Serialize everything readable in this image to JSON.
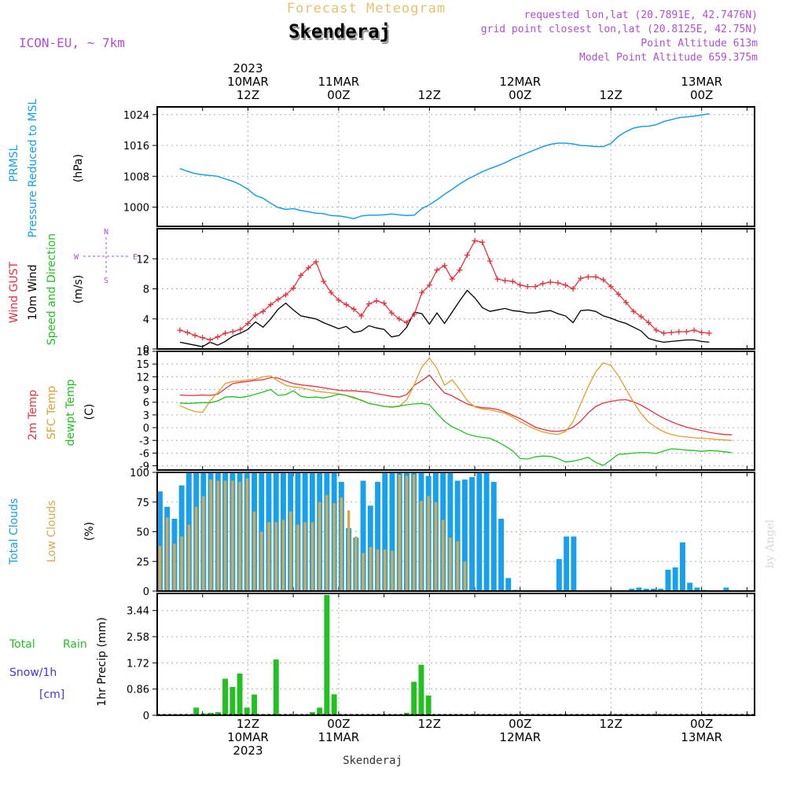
{
  "header": {
    "title": "Forecast Meteogram",
    "location": "Skenderaj",
    "model": "ICON-EU, ~ 7km",
    "requested": "requested lon,lat (20.7891E, 42.7476N)",
    "grid_point": "grid point closest lon,lat (20.8125E, 42.75N)",
    "point_altitude": "Point Altitude 613m",
    "model_altitude": "Model Point Altitude 659.375m",
    "footer_location": "Skenderaj",
    "watermark": "by Angel"
  },
  "colors": {
    "pressure": "#1a9ee8",
    "gust": "#e8323c",
    "wind": "#000000",
    "t2m": "#e8323c",
    "sfc": "#e0a030",
    "dewpt": "#22c022",
    "clouds_total": "#16a0ee",
    "clouds_low": "#d4aa50",
    "rain": "#22c022",
    "snow_label": "#3a3ae0",
    "purple": "#b14fd4",
    "title_orange": "#e8c070"
  },
  "chart_data": [
    {
      "type": "line",
      "panel": "pressure",
      "ylabels": [
        "PRMSL",
        "Pressure Reduced to MSL",
        "(hPa)"
      ],
      "ylim": [
        995,
        1026
      ],
      "yticks": [
        "1000",
        "1008",
        "1016",
        "1024"
      ],
      "x_hours_start": 3,
      "x_step_hours": 1,
      "values": [
        1010.0,
        1009.3,
        1008.7,
        1008.4,
        1008.2,
        1008.0,
        1007.3,
        1006.7,
        1005.8,
        1004.6,
        1003.0,
        1002.3,
        1001.0,
        999.9,
        999.4,
        999.6,
        999.1,
        998.8,
        998.4,
        998.3,
        997.8,
        997.7,
        997.4,
        997.0,
        997.7,
        997.9,
        997.9,
        998.0,
        998.2,
        998.0,
        997.8,
        997.9,
        999.6,
        1000.6,
        1001.9,
        1003.3,
        1004.6,
        1006.0,
        1007.2,
        1008.2,
        1009.2,
        1010.0,
        1010.7,
        1011.5,
        1012.5,
        1013.3,
        1014.1,
        1014.9,
        1015.7,
        1016.3,
        1016.6,
        1016.6,
        1016.4,
        1016.0,
        1015.9,
        1015.7,
        1015.7,
        1016.5,
        1018.4,
        1019.6,
        1020.5,
        1020.9,
        1021.0,
        1021.4,
        1022.2,
        1022.7,
        1023.2,
        1023.4,
        1023.6,
        1023.9,
        1024.2
      ]
    },
    {
      "type": "line",
      "panel": "wind",
      "ylabels": [
        "Wind GUST",
        "10m Wind",
        "Speed and Direction",
        "(m/s)"
      ],
      "compass": [
        "N",
        "W",
        "E",
        "S"
      ],
      "ylim": [
        0,
        16
      ],
      "yticks": [
        "0",
        "4",
        "8",
        "12"
      ],
      "x_hours_start": 3,
      "x_step_hours": 1,
      "series": [
        {
          "name": "Wind GUST",
          "values": [
            2.5,
            2.2,
            1.8,
            1.5,
            1.2,
            1.6,
            2.1,
            2.3,
            2.6,
            3.4,
            4.5,
            5.0,
            5.9,
            6.6,
            7.2,
            8.1,
            9.8,
            10.8,
            11.6,
            9.0,
            7.5,
            6.5,
            5.9,
            5.3,
            4.4,
            6.0,
            6.4,
            6.1,
            4.8,
            4.0,
            3.5,
            4.6,
            7.5,
            8.5,
            10.5,
            11.1,
            9.3,
            10.5,
            12.5,
            14.4,
            14.2,
            11.7,
            9.3,
            9.1,
            9.0,
            8.5,
            8.3,
            8.3,
            8.7,
            8.9,
            8.8,
            8.5,
            8.0,
            9.4,
            9.6,
            9.6,
            9.2,
            8.3,
            7.3,
            6.2,
            5.0,
            4.3,
            3.5,
            2.5,
            2.1,
            2.2,
            2.3,
            2.3,
            2.5,
            2.2,
            2.1
          ]
        },
        {
          "name": "10m Wind",
          "values": [
            0.9,
            0.7,
            0.5,
            0.3,
            0.9,
            0.5,
            1.0,
            1.7,
            2.1,
            2.6,
            3.6,
            2.9,
            4.0,
            5.3,
            6.1,
            5.2,
            4.4,
            4.2,
            4.0,
            3.5,
            3.1,
            2.7,
            3.0,
            2.2,
            2.4,
            3.1,
            2.8,
            2.6,
            1.6,
            1.8,
            2.9,
            4.9,
            4.7,
            3.3,
            4.8,
            3.4,
            4.9,
            6.4,
            7.8,
            6.8,
            5.5,
            5.0,
            5.2,
            5.4,
            5.1,
            5.0,
            4.8,
            4.8,
            5.0,
            5.1,
            4.7,
            4.4,
            3.5,
            5.1,
            5.2,
            5.0,
            4.4,
            4.1,
            3.7,
            3.4,
            2.9,
            2.4,
            1.4,
            1.1,
            0.9,
            1.0,
            1.1,
            1.2,
            1.2,
            1.0,
            0.9
          ]
        }
      ]
    },
    {
      "type": "line",
      "panel": "temperature",
      "ylabels": [
        "2m Temp",
        "SFC Temp",
        "dewpt Temp",
        "(C)"
      ],
      "ylim": [
        -10,
        18
      ],
      "yticks": [
        "-9",
        "-6",
        "-3",
        "0",
        "3",
        "6",
        "9",
        "12",
        "15",
        "18"
      ],
      "x_hours_start": 3,
      "x_step_hours": 1,
      "series": [
        {
          "name": "2m Temp",
          "values": [
            7.7,
            7.6,
            7.6,
            7.7,
            7.6,
            7.9,
            9.2,
            10.4,
            10.7,
            10.9,
            11.2,
            11.3,
            11.8,
            11.7,
            11.0,
            10.4,
            10.1,
            9.9,
            9.7,
            9.4,
            9.1,
            8.8,
            8.7,
            8.7,
            8.5,
            8.4,
            8.0,
            7.7,
            7.4,
            7.2,
            7.8,
            10.0,
            11.1,
            12.4,
            10.2,
            8.2,
            7.5,
            6.5,
            5.6,
            5.0,
            4.7,
            4.6,
            4.3,
            3.7,
            2.9,
            2.1,
            1.1,
            0.1,
            -0.4,
            -0.8,
            -0.9,
            -0.6,
            0.1,
            1.5,
            3.5,
            5.0,
            5.8,
            6.2,
            6.5,
            6.6,
            6.1,
            5.3,
            4.3,
            3.2,
            2.2,
            1.4,
            0.7,
            0.1,
            -0.3,
            -0.7,
            -1.1,
            -1.4,
            -1.6,
            -1.7
          ]
        },
        {
          "name": "SFC Temp",
          "values": [
            5.2,
            4.4,
            3.8,
            3.6,
            6.3,
            8.3,
            10.4,
            10.9,
            11.0,
            11.3,
            11.5,
            12.0,
            12.2,
            11.0,
            10.0,
            9.6,
            9.4,
            9.0,
            8.6,
            8.4,
            8.2,
            8.0,
            7.6,
            7.2,
            6.4,
            5.7,
            5.4,
            5.0,
            4.8,
            5.0,
            6.6,
            10.2,
            14.3,
            16.4,
            14.0,
            10.0,
            11.3,
            9.0,
            6.4,
            4.9,
            4.4,
            4.2,
            3.8,
            3.4,
            2.5,
            1.4,
            0.5,
            -0.4,
            -1.0,
            -1.4,
            -1.6,
            -0.9,
            1.4,
            5.6,
            9.7,
            13.2,
            15.3,
            14.7,
            12.2,
            9.1,
            6.0,
            3.3,
            1.3,
            0.0,
            -1.0,
            -1.6,
            -2.0,
            -2.2,
            -2.4,
            -2.5,
            -2.6,
            -2.8,
            -2.9,
            -3.0
          ]
        },
        {
          "name": "dewpt Temp",
          "values": [
            5.8,
            5.7,
            5.8,
            5.9,
            5.9,
            6.3,
            7.2,
            7.3,
            7.1,
            7.4,
            7.9,
            8.4,
            9.0,
            7.6,
            7.8,
            8.7,
            7.4,
            7.1,
            7.2,
            7.0,
            7.4,
            7.9,
            7.6,
            7.0,
            6.5,
            5.7,
            5.4,
            5.0,
            4.9,
            5.1,
            5.4,
            5.6,
            5.7,
            5.4,
            3.4,
            1.5,
            0.2,
            -0.6,
            -1.5,
            -2.0,
            -2.3,
            -2.5,
            -3.3,
            -4.3,
            -5.5,
            -7.3,
            -7.4,
            -6.9,
            -6.7,
            -6.8,
            -7.3,
            -8.1,
            -7.9,
            -7.5,
            -7.0,
            -8.2,
            -8.9,
            -7.6,
            -6.3,
            -6.2,
            -6.0,
            -5.9,
            -5.9,
            -6.1,
            -5.5,
            -5.0,
            -5.1,
            -5.3,
            -5.4,
            -5.6,
            -5.4,
            -5.5,
            -5.7,
            -5.9
          ]
        }
      ]
    },
    {
      "type": "bar",
      "panel": "clouds",
      "ylabels": [
        "Total Clouds",
        "Low Clouds",
        "(%)"
      ],
      "ylim": [
        0,
        100
      ],
      "yticks": [
        "0",
        "25",
        "50",
        "75",
        "100"
      ],
      "x_hours_start": 3,
      "x_step_hours": 1,
      "series": [
        {
          "name": "Total Clouds",
          "values": [
            84,
            71,
            61,
            89,
            100,
            100,
            100,
            100,
            100,
            100,
            100,
            100,
            100,
            100,
            100,
            100,
            100,
            100,
            100,
            100,
            100,
            100,
            100,
            100,
            100,
            92,
            53,
            45,
            93,
            72,
            92,
            100,
            100,
            100,
            100,
            100,
            100,
            97,
            100,
            100,
            100,
            93,
            94,
            96,
            100,
            100,
            92,
            61,
            11,
            1,
            0,
            0,
            0,
            0,
            0,
            27,
            46,
            46,
            0,
            0,
            0,
            0,
            0,
            0,
            0,
            2,
            3,
            2,
            2,
            2,
            18,
            20,
            41,
            7,
            3,
            1,
            0,
            0,
            3,
            0
          ]
        },
        {
          "name": "Low Clouds",
          "values": [
            38,
            62,
            40,
            46,
            56,
            71,
            80,
            94,
            93,
            93,
            93,
            92,
            95,
            67,
            50,
            58,
            58,
            60,
            67,
            56,
            58,
            58,
            75,
            81,
            74,
            79,
            68,
            46,
            32,
            37,
            35,
            35,
            34,
            98,
            97,
            98,
            76,
            80,
            75,
            60,
            45,
            42,
            25,
            0,
            0,
            0,
            0,
            0,
            0,
            0,
            0,
            0,
            0,
            0,
            0,
            0,
            0,
            0,
            0,
            0,
            0,
            0,
            0,
            0,
            0,
            0,
            0,
            0,
            0,
            0,
            0,
            0,
            0,
            0,
            0,
            0,
            0,
            0,
            0,
            0
          ]
        }
      ]
    },
    {
      "type": "bar",
      "panel": "precip",
      "ylabels": [
        "Total",
        "Rain",
        "Snow/1h",
        "[cm]",
        "1hr Precip (mm)"
      ],
      "ylim": [
        0,
        4.0
      ],
      "yticks": [
        "0",
        "0.86",
        "1.72",
        "2.58",
        "3.44"
      ],
      "x_hours_start": 3,
      "x_step_hours": 1,
      "series": [
        {
          "name": "Total Rain",
          "values": [
            0,
            0,
            0,
            0,
            0,
            0.25,
            0.06,
            0.08,
            0.1,
            1.2,
            0.93,
            1.37,
            0.25,
            0.68,
            0,
            0,
            1.83,
            0,
            0,
            0,
            0,
            0.1,
            0.25,
            3.95,
            0.69,
            0,
            0,
            0,
            0,
            0,
            0,
            0,
            0,
            0,
            0.08,
            1.1,
            1.66,
            0.65,
            0,
            0,
            0,
            0,
            0,
            0,
            0,
            0,
            0,
            0,
            0,
            0,
            0,
            0,
            0,
            0,
            0,
            0,
            0,
            0,
            0,
            0,
            0,
            0,
            0,
            0,
            0,
            0,
            0,
            0,
            0,
            0,
            0,
            0,
            0,
            0,
            0,
            0,
            0,
            0,
            0,
            0
          ]
        }
      ]
    }
  ],
  "axis": {
    "top": [
      {
        "hour": 12,
        "lines": [
          "2023",
          "10MAR",
          "12Z"
        ]
      },
      {
        "hour": 24,
        "lines": [
          "11MAR",
          "00Z"
        ]
      },
      {
        "hour": 36,
        "lines": [
          "12Z"
        ]
      },
      {
        "hour": 48,
        "lines": [
          "12MAR",
          "00Z"
        ]
      },
      {
        "hour": 60,
        "lines": [
          "12Z"
        ]
      },
      {
        "hour": 72,
        "lines": [
          "13MAR",
          "00Z"
        ]
      }
    ],
    "bottom": [
      {
        "hour": 12,
        "lines": [
          "12Z",
          "10MAR",
          "2023"
        ]
      },
      {
        "hour": 24,
        "lines": [
          "00Z",
          "11MAR"
        ]
      },
      {
        "hour": 36,
        "lines": [
          "12Z"
        ]
      },
      {
        "hour": 48,
        "lines": [
          "00Z",
          "12MAR"
        ]
      },
      {
        "hour": 60,
        "lines": [
          "12Z"
        ]
      },
      {
        "hour": 72,
        "lines": [
          "00Z",
          "13MAR"
        ]
      }
    ]
  }
}
